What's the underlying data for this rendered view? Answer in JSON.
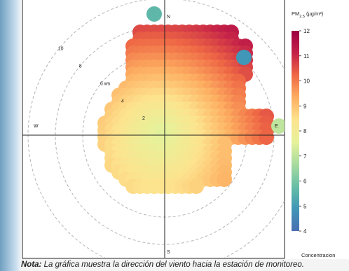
{
  "chart_data": {
    "type": "polar-plot",
    "legend_title": "PM",
    "legend_sub": "2.5",
    "legend_unit": " (µg/m³)",
    "legend_ticks": [
      4,
      5,
      6,
      7,
      8,
      9,
      10,
      11,
      12
    ],
    "legend_range": [
      4,
      12
    ],
    "legend_colors": [
      "#4a6fb2",
      "#3f96b7",
      "#67bfa6",
      "#a8db9e",
      "#e6f29a",
      "#fde38e",
      "#fdae61",
      "#ef6845",
      "#c42148",
      "#9e0142"
    ],
    "bottom_label": "Concentracion",
    "directions": [
      "N",
      "E",
      "S",
      "W"
    ],
    "ws_rings": [
      2,
      4,
      6,
      8,
      10
    ],
    "ws_ring_labels": [
      "2",
      "4",
      "6 ws",
      "8",
      "10"
    ],
    "max_ws": 12,
    "grid": true
  },
  "note": {
    "label": "Nota:",
    "text": " La gráfica muestra la dirección del viento hacia la estación de monitoreo."
  }
}
